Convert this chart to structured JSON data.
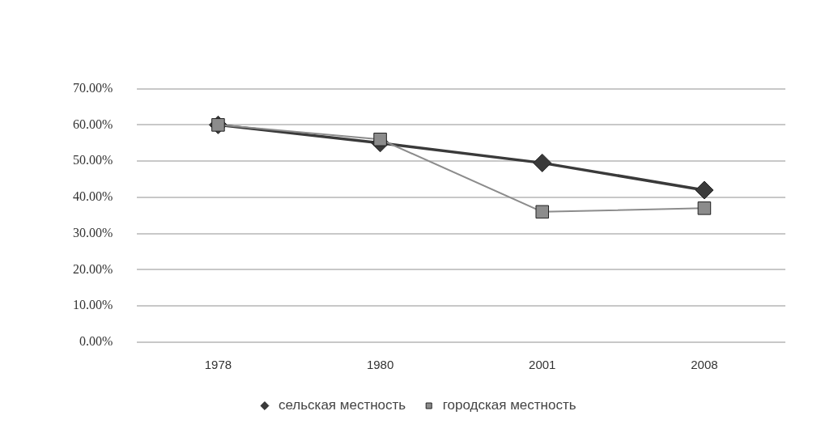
{
  "chart_data": {
    "type": "line",
    "categories": [
      "1978",
      "1980",
      "2001",
      "2008"
    ],
    "series": [
      {
        "name": "сельская местность",
        "color": "#3a3a3a",
        "marker": "diamond",
        "values": [
          60,
          55,
          49.5,
          42
        ]
      },
      {
        "name": "городская местность",
        "color": "#8c8c8c",
        "marker": "square",
        "values": [
          60,
          56,
          36,
          37
        ]
      }
    ],
    "ylim": [
      0,
      70
    ],
    "yticks": [
      {
        "value": 0,
        "label": "0.00%"
      },
      {
        "value": 10,
        "label": "10.00%"
      },
      {
        "value": 20,
        "label": "20.00%"
      },
      {
        "value": 30,
        "label": "30.00%"
      },
      {
        "value": 40,
        "label": "40.00%"
      },
      {
        "value": 50,
        "label": "50.00%"
      },
      {
        "value": 60,
        "label": "60.00%"
      },
      {
        "value": 70,
        "label": "70.00%"
      }
    ],
    "grid": "y",
    "legend": "bottom"
  }
}
